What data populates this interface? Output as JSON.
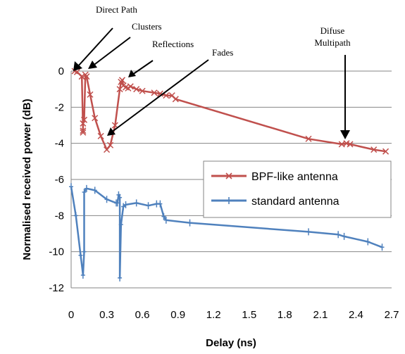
{
  "chart_data": {
    "type": "line",
    "title": "",
    "xlabel": "Delay (ns)",
    "ylabel": "Normalised received power  (dB)",
    "xlim": [
      0,
      2.7
    ],
    "ylim": [
      -12,
      0
    ],
    "x_ticks": [
      "0",
      "0.3",
      "0.6",
      "0.9",
      "1.2",
      "1.5",
      "1.8",
      "2.1",
      "2.4",
      "2.7"
    ],
    "y_ticks": [
      "0",
      "-2",
      "-4",
      "-6",
      "-8",
      "-10",
      "-12"
    ],
    "grid": "horizontal",
    "legend_position": "right",
    "series": [
      {
        "name": "BPF-like antenna",
        "color": "#c0504d",
        "marker": "x",
        "points": [
          [
            0.03,
            0.0
          ],
          [
            0.05,
            -0.05
          ],
          [
            0.09,
            -0.3
          ],
          [
            0.1,
            -3.3
          ],
          [
            0.1,
            -3.4
          ],
          [
            0.1,
            -2.9
          ],
          [
            0.11,
            -2.7
          ],
          [
            0.12,
            -0.2
          ],
          [
            0.13,
            -0.3
          ],
          [
            0.16,
            -1.3
          ],
          [
            0.2,
            -2.6
          ],
          [
            0.25,
            -3.6
          ],
          [
            0.3,
            -4.35
          ],
          [
            0.33,
            -4.1
          ],
          [
            0.37,
            -3.0
          ],
          [
            0.41,
            -1.0
          ],
          [
            0.42,
            -0.6
          ],
          [
            0.43,
            -0.5
          ],
          [
            0.44,
            -0.8
          ],
          [
            0.46,
            -0.9
          ],
          [
            0.48,
            -0.95
          ],
          [
            0.5,
            -0.85
          ],
          [
            0.55,
            -1.0
          ],
          [
            0.6,
            -1.1
          ],
          [
            0.7,
            -1.2
          ],
          [
            0.75,
            -1.25
          ],
          [
            0.8,
            -1.35
          ],
          [
            0.85,
            -1.35
          ],
          [
            0.88,
            -1.55
          ],
          [
            2.0,
            -3.75
          ],
          [
            2.28,
            -4.05
          ],
          [
            2.32,
            -4.0
          ],
          [
            2.35,
            -4.05
          ],
          [
            2.55,
            -4.35
          ],
          [
            2.65,
            -4.45
          ]
        ]
      },
      {
        "name": "standard antenna",
        "color": "#4f81bd",
        "marker": "+",
        "points": [
          [
            0.0,
            -6.4
          ],
          [
            0.04,
            -8.0
          ],
          [
            0.08,
            -10.2
          ],
          [
            0.1,
            -11.3
          ],
          [
            0.11,
            -10.0
          ],
          [
            0.11,
            -6.7
          ],
          [
            0.13,
            -6.5
          ],
          [
            0.2,
            -6.6
          ],
          [
            0.3,
            -7.1
          ],
          [
            0.38,
            -7.3
          ],
          [
            0.39,
            -7.3
          ],
          [
            0.4,
            -6.85
          ],
          [
            0.41,
            -7.0
          ],
          [
            0.41,
            -11.45
          ],
          [
            0.42,
            -8.5
          ],
          [
            0.44,
            -7.5
          ],
          [
            0.46,
            -7.4
          ],
          [
            0.55,
            -7.3
          ],
          [
            0.65,
            -7.45
          ],
          [
            0.72,
            -7.35
          ],
          [
            0.75,
            -7.35
          ],
          [
            0.78,
            -8.05
          ],
          [
            0.8,
            -8.25
          ],
          [
            1.0,
            -8.4
          ],
          [
            2.0,
            -8.9
          ],
          [
            2.25,
            -9.05
          ],
          [
            2.3,
            -9.15
          ],
          [
            2.5,
            -9.45
          ],
          [
            2.62,
            -9.75
          ]
        ]
      }
    ],
    "annotations": [
      {
        "text": "Direct Path"
      },
      {
        "text": "Clusters"
      },
      {
        "text": "Reflections"
      },
      {
        "text": "Fades"
      },
      {
        "text": "Difuse"
      },
      {
        "text": "Multipath"
      }
    ]
  }
}
